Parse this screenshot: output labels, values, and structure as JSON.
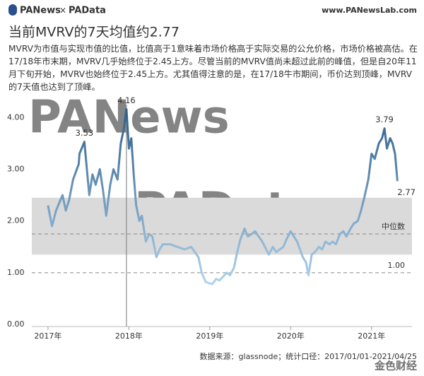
{
  "header": {
    "logo_left": "PANews",
    "logo_sep": "×",
    "logo_right": "PAData",
    "site": "www.PANewsLab.com"
  },
  "chart_data": {
    "type": "line",
    "title": "当前MVRV的7天均值约2.77",
    "description": "MVRV为市值与实现市值的比值，比值高于1意味着市场价格高于实际交易的公允价格，市场价格被高估。在17/18年市末期，MVRV几乎始终位于2.45上方。尽管当前的MVRV值尚未超过此前的峰值，但是自20年11月下旬开始，MVRV也始终位于2.45上方。尤其值得注意的是，在17/18牛市期间，币价达到顶峰，MVRV的7天值也达到了顶峰。",
    "x": [
      2017.0,
      2017.05,
      2017.1,
      2017.14,
      2017.18,
      2017.22,
      2017.26,
      2017.31,
      2017.38,
      2017.39,
      2017.45,
      2017.51,
      2017.55,
      2017.59,
      2017.64,
      2017.68,
      2017.72,
      2017.77,
      2017.81,
      2017.86,
      2017.9,
      2017.94,
      2017.97,
      2018.0,
      2018.03,
      2018.06,
      2018.09,
      2018.13,
      2018.16,
      2018.21,
      2018.25,
      2018.29,
      2018.34,
      2018.38,
      2018.42,
      2018.51,
      2018.6,
      2018.69,
      2018.77,
      2018.86,
      2018.9,
      2018.95,
      2018.99,
      2019.03,
      2019.08,
      2019.12,
      2019.21,
      2019.25,
      2019.3,
      2019.34,
      2019.38,
      2019.43,
      2019.47,
      2019.52,
      2019.56,
      2019.65,
      2019.73,
      2019.78,
      2019.82,
      2019.91,
      2019.95,
      2020.0,
      2020.08,
      2020.15,
      2020.19,
      2020.22,
      2020.26,
      2020.3,
      2020.35,
      2020.39,
      2020.43,
      2020.48,
      2020.52,
      2020.56,
      2020.61,
      2020.65,
      2020.69,
      2020.74,
      2020.78,
      2020.83,
      2020.87,
      2020.91,
      2020.96,
      2021.0,
      2021.04,
      2021.09,
      2021.13,
      2021.16,
      2021.19,
      2021.23,
      2021.26,
      2021.29,
      2021.32
    ],
    "series": [
      {
        "name": "MVRV",
        "line_gradient": [
          "#2c5d8a",
          "#b3d6ee"
        ],
        "values": [
          2.3,
          1.9,
          2.2,
          2.35,
          2.5,
          2.2,
          2.4,
          2.8,
          3.1,
          3.3,
          3.53,
          2.5,
          2.9,
          2.7,
          3.0,
          2.6,
          2.1,
          2.7,
          3.0,
          2.8,
          3.5,
          3.8,
          4.16,
          3.4,
          3.6,
          2.9,
          2.3,
          2.0,
          2.1,
          1.6,
          1.75,
          1.7,
          1.3,
          1.45,
          1.55,
          1.55,
          1.5,
          1.45,
          1.5,
          1.3,
          1.0,
          0.82,
          0.8,
          0.78,
          0.88,
          0.85,
          1.0,
          0.95,
          1.1,
          1.4,
          1.65,
          1.85,
          1.7,
          1.75,
          1.8,
          1.6,
          1.35,
          1.5,
          1.4,
          1.5,
          1.65,
          1.8,
          1.6,
          1.3,
          1.2,
          0.95,
          1.35,
          1.4,
          1.5,
          1.45,
          1.6,
          1.55,
          1.6,
          1.55,
          1.75,
          1.8,
          1.7,
          1.85,
          1.95,
          2.0,
          2.2,
          2.45,
          2.8,
          3.3,
          3.2,
          3.5,
          3.6,
          3.79,
          3.4,
          3.6,
          3.5,
          3.3,
          2.77
        ],
        "value_labels": [
          null,
          null,
          null,
          null,
          null,
          null,
          null,
          null,
          null,
          null,
          "3.53",
          null,
          null,
          null,
          null,
          null,
          null,
          null,
          null,
          null,
          null,
          null,
          "4.16",
          null,
          null,
          null,
          null,
          null,
          null,
          null,
          null,
          null,
          null,
          null,
          null,
          null,
          null,
          null,
          null,
          null,
          null,
          null,
          null,
          null,
          null,
          null,
          null,
          null,
          null,
          null,
          null,
          null,
          null,
          null,
          null,
          null,
          null,
          null,
          null,
          null,
          null,
          null,
          null,
          null,
          null,
          null,
          null,
          null,
          null,
          null,
          null,
          null,
          null,
          null,
          null,
          null,
          null,
          null,
          null,
          null,
          null,
          null,
          null,
          null,
          null,
          null,
          null,
          "3.79",
          null,
          null,
          null,
          null,
          "2.77"
        ]
      }
    ],
    "xlim": [
      2016.8,
      2021.5
    ],
    "ylim": [
      -0.15,
      4.25
    ],
    "xticks": [
      {
        "value": 2017,
        "label": "2017年"
      },
      {
        "value": 2018,
        "label": "2018年"
      },
      {
        "value": 2019,
        "label": "2019年"
      },
      {
        "value": 2020,
        "label": "2020年"
      },
      {
        "value": 2021,
        "label": "2021年"
      }
    ],
    "yticks": [
      {
        "value": 0,
        "label": "0.00"
      },
      {
        "value": 1,
        "label": "1.00"
      },
      {
        "value": 2,
        "label": "2.00"
      },
      {
        "value": 3,
        "label": "3.00"
      },
      {
        "value": 4,
        "label": "4.00"
      }
    ],
    "band": [
      1.35,
      2.45
    ],
    "band_color": "#dadada",
    "reference_lines": [
      {
        "value": 1.75,
        "label": "中位数"
      },
      {
        "value": 1.0,
        "label": "1.00"
      }
    ],
    "vline": 2017.97,
    "watermarks": [
      "PANews",
      "PAData"
    ],
    "source": "数据来源：glassnode；统计口径：2017/01/01-2021/04/25"
  },
  "footer_logo": "金色财经"
}
